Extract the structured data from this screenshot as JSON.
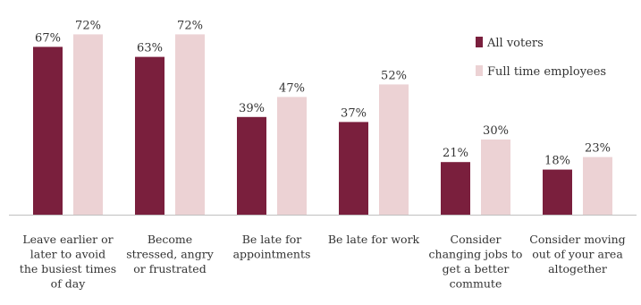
{
  "chart_data": {
    "type": "bar",
    "categories": [
      "Leave earlier or later to avoid the busiest times of day",
      "Become stressed, angry or frustrated",
      "Be late for appointments",
      "Be late for work",
      "Consider changing jobs to get a better commute",
      "Consider moving out of your area altogether"
    ],
    "category_lines": [
      [
        "Leave earlier or",
        "later to avoid",
        "the busiest times",
        "of day"
      ],
      [
        "Become",
        "stressed, angry",
        "or frustrated"
      ],
      [
        "Be late for",
        "appointments"
      ],
      [
        "Be late for work"
      ],
      [
        "Consider",
        "changing jobs to",
        "get a better",
        "commute"
      ],
      [
        "Consider moving",
        "out of your area",
        "altogether"
      ]
    ],
    "series": [
      {
        "name": "All voters",
        "color": "#7a1f3d",
        "values": [
          67,
          63,
          39,
          37,
          21,
          18
        ],
        "labels": [
          "67%",
          "63%",
          "39%",
          "37%",
          "21%",
          "18%"
        ]
      },
      {
        "name": "Full time employees",
        "color": "#ecd2d4",
        "values": [
          72,
          72,
          47,
          52,
          30,
          23
        ],
        "labels": [
          "72%",
          "72%",
          "47%",
          "52%",
          "30%",
          "23%"
        ]
      }
    ],
    "ylim": [
      0,
      100
    ],
    "grid": false,
    "legend": "top-right",
    "title": "",
    "xlabel": "",
    "ylabel": ""
  }
}
